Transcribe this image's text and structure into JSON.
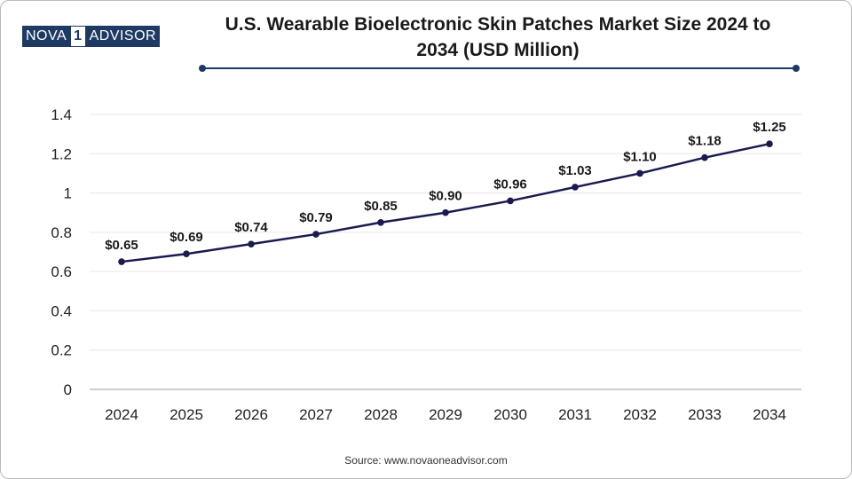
{
  "logo": {
    "left_text": "NOVA",
    "mid_text": "1",
    "right_text": "ADVISOR"
  },
  "title_line1": "U.S. Wearable Bioelectronic Skin Patches Market Size 2024 to",
  "title_line2": "2034 (USD Million)",
  "source": "Source: www.novaoneadvisor.com",
  "colors": {
    "line": "#1a1a4e",
    "accent": "#1e3a63",
    "grid": "#e6e6e6",
    "text": "#1a1a1a"
  },
  "chart_data": {
    "type": "line",
    "title": "U.S. Wearable Bioelectronic Skin Patches Market Size 2024 to 2034 (USD Million)",
    "xlabel": "",
    "ylabel": "",
    "categories": [
      "2024",
      "2025",
      "2026",
      "2027",
      "2028",
      "2029",
      "2030",
      "2031",
      "2032",
      "2033",
      "2034"
    ],
    "values": [
      0.65,
      0.69,
      0.74,
      0.79,
      0.85,
      0.9,
      0.96,
      1.03,
      1.1,
      1.18,
      1.25
    ],
    "data_labels": [
      "$0.65",
      "$0.69",
      "$0.74",
      "$0.79",
      "$0.85",
      "$0.90",
      "$0.96",
      "$1.03",
      "$1.10",
      "$1.18",
      "$1.25"
    ],
    "y_ticks": [
      "0",
      "0.2",
      "0.4",
      "0.6",
      "0.8",
      "1",
      "1.2",
      "1.4"
    ],
    "ylim": [
      0,
      1.4
    ],
    "grid": true,
    "legend": "none"
  }
}
